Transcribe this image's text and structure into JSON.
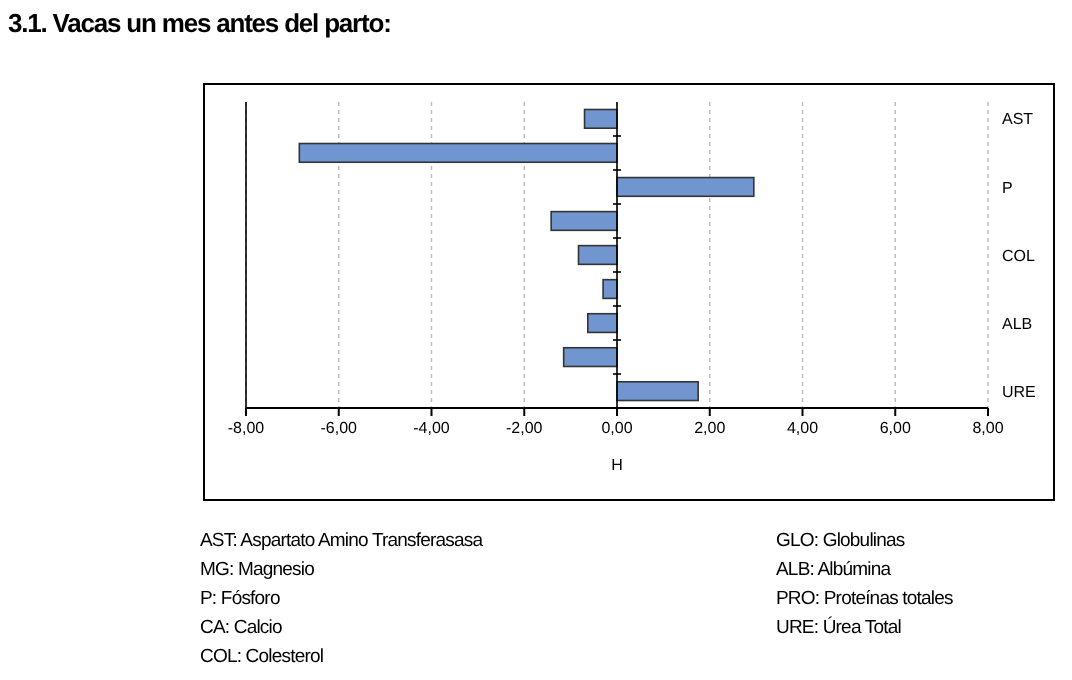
{
  "chart_data": {
    "type": "bar",
    "orientation": "horizontal",
    "title": "3.1. Vacas un mes antes del parto:",
    "xlabel": "H",
    "categories": [
      "AST",
      null,
      "P",
      null,
      "COL",
      null,
      "ALB",
      null,
      "URE"
    ],
    "values": [
      -0.7,
      -6.85,
      2.95,
      -1.42,
      -0.83,
      -0.3,
      -0.63,
      -1.15,
      1.75
    ],
    "color": "#7195cf",
    "xlim": [
      -8,
      8
    ],
    "xticks": [
      {
        "value": -8,
        "label": "-8,00"
      },
      {
        "value": -6,
        "label": "-6,00"
      },
      {
        "value": -4,
        "label": "-4,00"
      },
      {
        "value": -2,
        "label": "-2,00"
      },
      {
        "value": 0,
        "label": "0,00"
      },
      {
        "value": 2,
        "label": "2,00"
      },
      {
        "value": 4,
        "label": "4,00"
      },
      {
        "value": 6,
        "label": "6,00"
      },
      {
        "value": 8,
        "label": "8,00"
      }
    ],
    "grid": "x",
    "annotations": [
      "AST: Aspartato Amino Transferasasa",
      "MG: Magnesio",
      "P: Fósforo",
      "CA: Calcio",
      "COL: Colesterol",
      "GLO: Globulinas",
      "ALB: Albúmina",
      "PRO: Proteínas totales",
      "URE: Úrea Total"
    ]
  }
}
